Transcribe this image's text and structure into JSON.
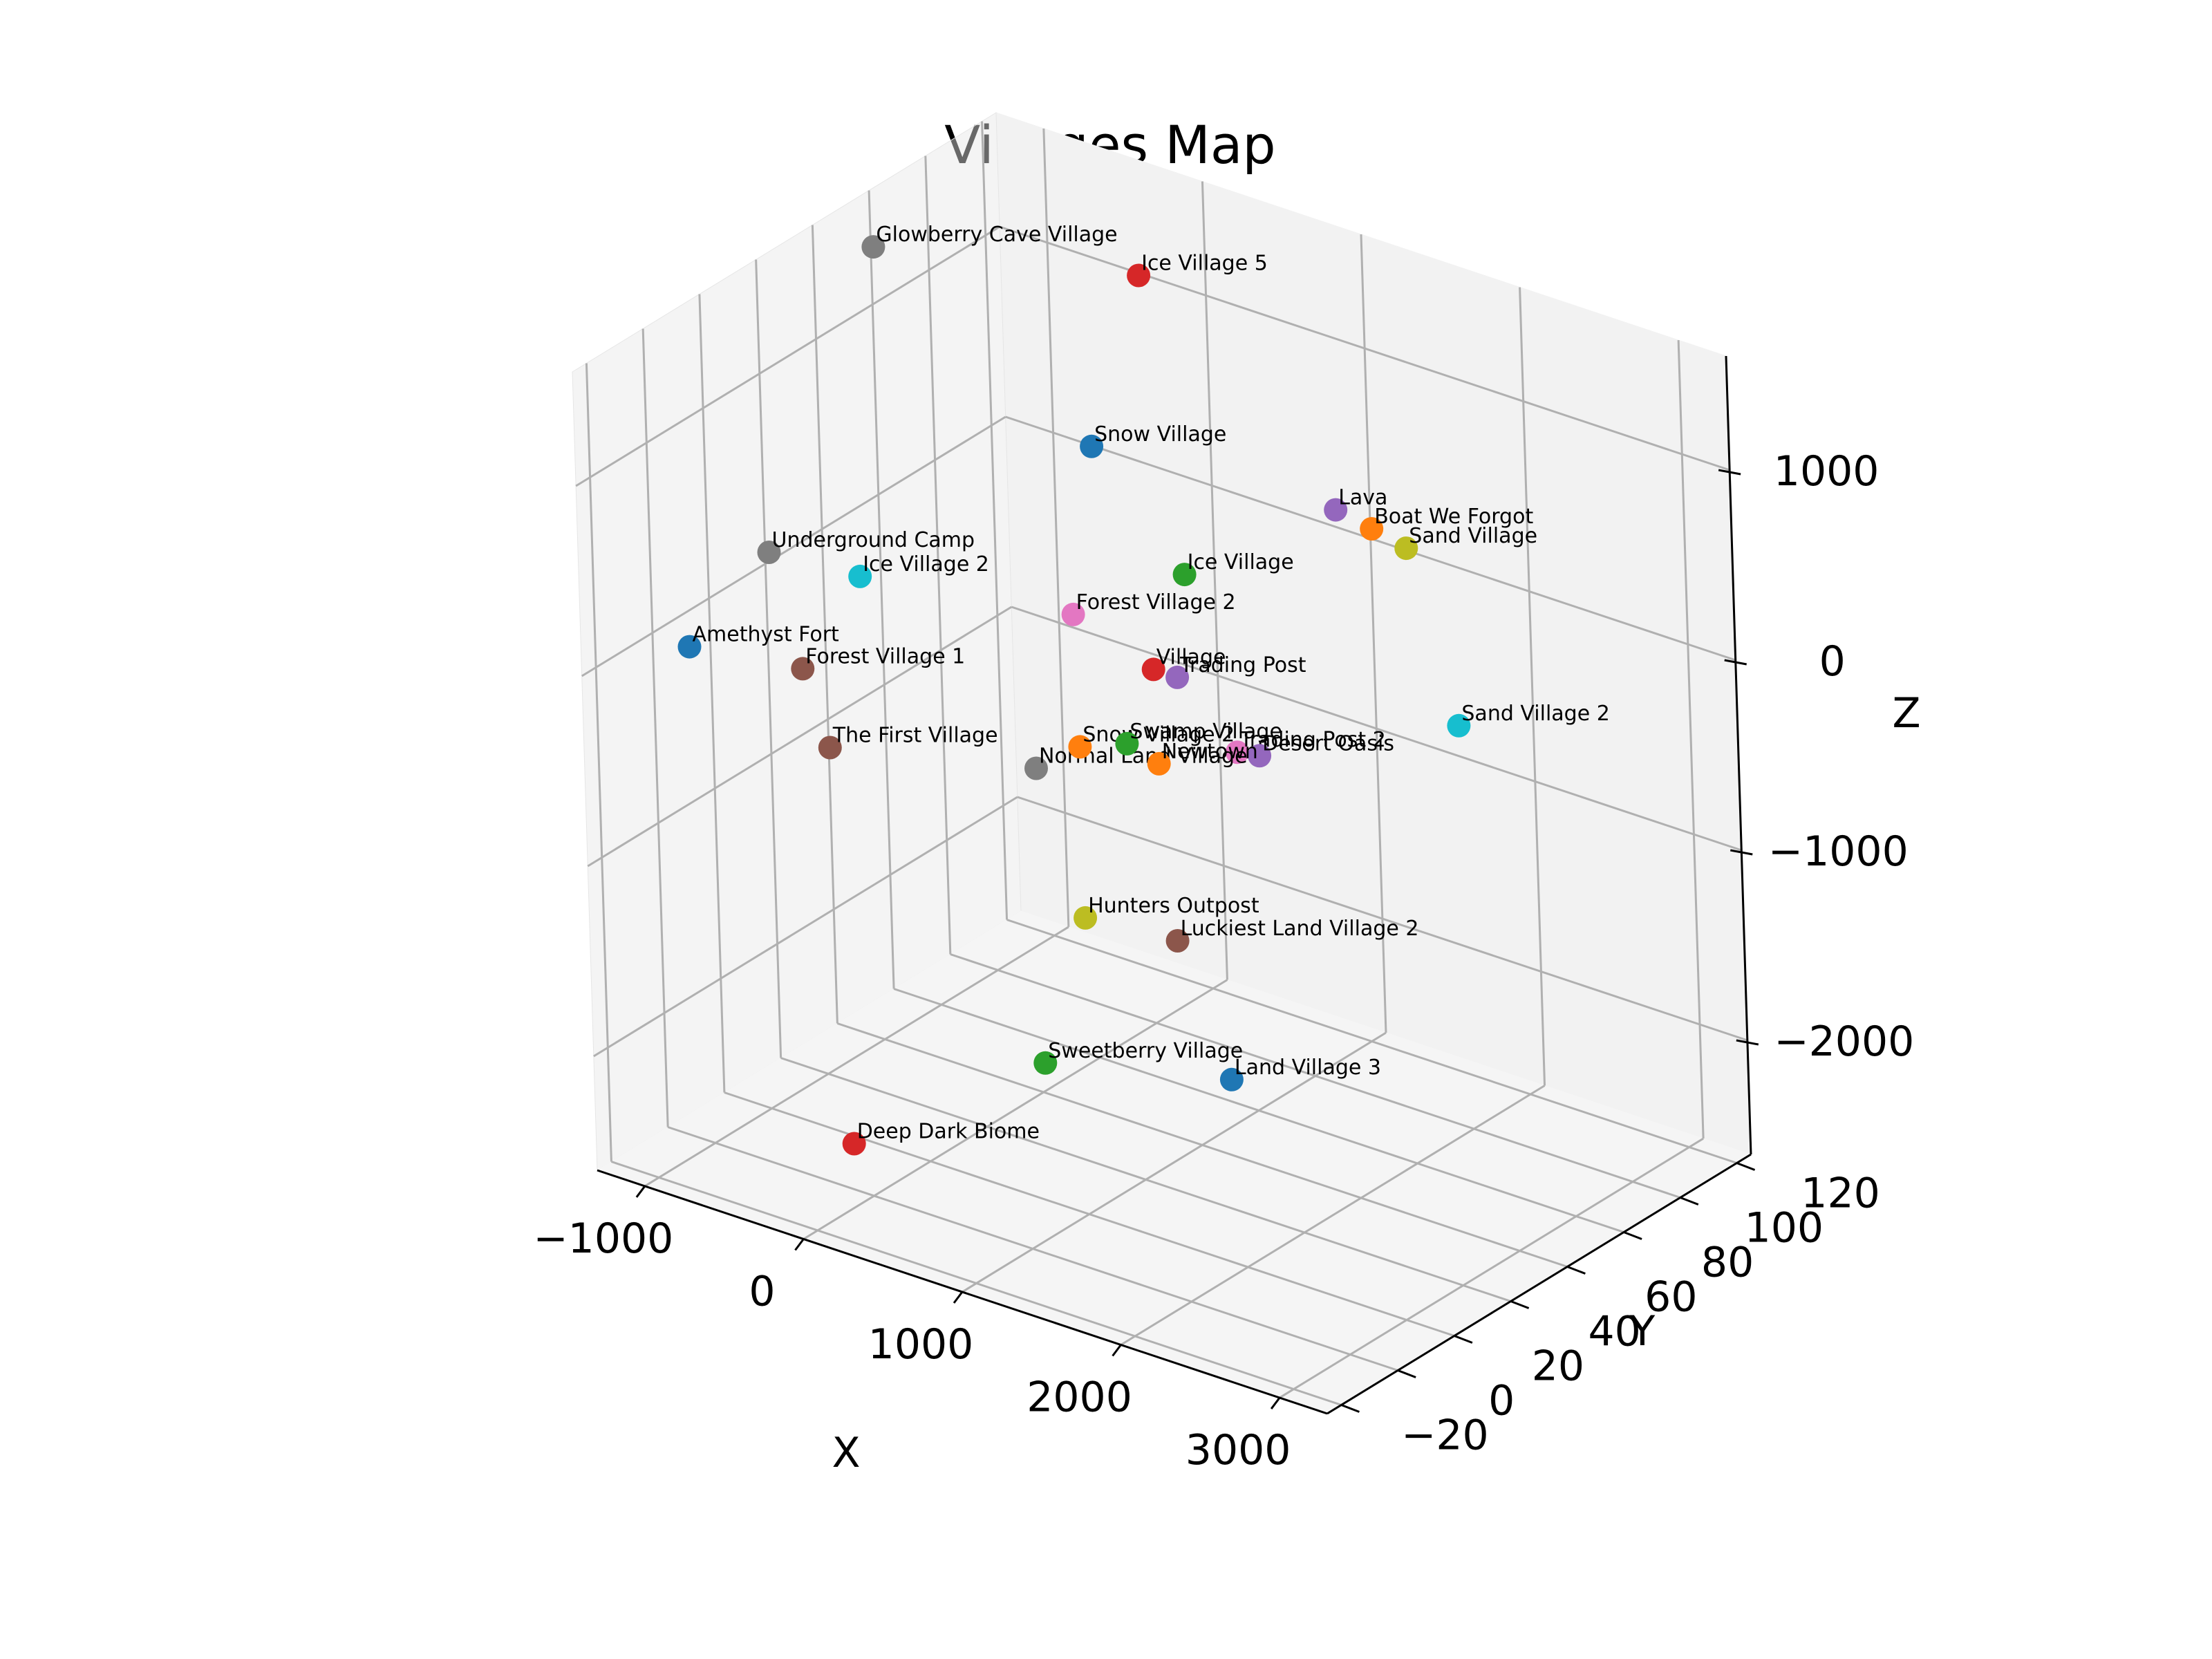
{
  "chart_data": {
    "type": "scatter",
    "projection": "3d",
    "title": "Villages Map",
    "xlabel": "X",
    "ylabel": "Y",
    "zlabel": "Z",
    "grid": true,
    "xlim": [
      -1300,
      3300
    ],
    "ylim": [
      -25,
      125
    ],
    "zlim": [
      -2600,
      1600
    ],
    "xticks": [
      -1000,
      0,
      1000,
      2000,
      3000
    ],
    "xtick_labels": [
      "−1000",
      "0",
      "1000",
      "2000",
      "3000"
    ],
    "yticks": [
      -20,
      0,
      20,
      40,
      60,
      80,
      100,
      120
    ],
    "ytick_labels": [
      "−20",
      "0",
      "20",
      "40",
      "60",
      "80",
      "100",
      "120"
    ],
    "zticks": [
      -2000,
      -1000,
      0,
      1000
    ],
    "ztick_labels": [
      "−2000",
      "−1000",
      "0",
      "1000"
    ],
    "points": [
      {
        "name": "Glowberry Cave Village",
        "x": -1100,
        "y": 70,
        "z": 1450,
        "color": "#7f7f7f"
      },
      {
        "name": "Ice Village 5",
        "x": -150,
        "y": 110,
        "z": 1200,
        "color": "#d62728"
      },
      {
        "name": "Lava",
        "x": 1700,
        "y": 75,
        "z": 800,
        "color": "#9467bd"
      },
      {
        "name": "Sand Village",
        "x": 2050,
        "y": 80,
        "z": 650,
        "color": "#bcbd22"
      },
      {
        "name": "Boat We Forgot",
        "x": 1650,
        "y": 90,
        "z": 550,
        "color": "#ff7f0e"
      },
      {
        "name": "Underground Camp",
        "x": -1000,
        "y": 25,
        "z": 280,
        "color": "#7f7f7f"
      },
      {
        "name": "Snow Village",
        "x": -300,
        "y": 100,
        "z": 350,
        "color": "#1f77b4"
      },
      {
        "name": "Ice Village 2",
        "x": -700,
        "y": 40,
        "z": 100,
        "color": "#17becf"
      },
      {
        "name": "Amethyst Fort",
        "x": -1250,
        "y": 10,
        "z": -150,
        "color": "#1f77b4"
      },
      {
        "name": "Forest Village 1",
        "x": -900,
        "y": 30,
        "z": -350,
        "color": "#8c564b"
      },
      {
        "name": "Forest Village 2",
        "x": 100,
        "y": 70,
        "z": -150,
        "color": "#e377c2"
      },
      {
        "name": "Ice Village",
        "x": -100,
        "y": 120,
        "z": -450,
        "color": "#2ca02c"
      },
      {
        "name": "Village",
        "x": 600,
        "y": 70,
        "z": -300,
        "color": "#d62728"
      },
      {
        "name": "Trading Post",
        "x": 750,
        "y": 70,
        "z": -300,
        "color": "#9467bd"
      },
      {
        "name": "Trading Post 2",
        "x": 1300,
        "y": 60,
        "z": -450,
        "color": "#e377c2"
      },
      {
        "name": "Desert Oasis",
        "x": 1350,
        "y": 65,
        "z": -500,
        "color": "#9467bd"
      },
      {
        "name": "Sand Village 2",
        "x": 2350,
        "y": 80,
        "z": -200,
        "color": "#17becf"
      },
      {
        "name": "The First Village",
        "x": -650,
        "y": 25,
        "z": -650,
        "color": "#8c564b"
      },
      {
        "name": "Normal Land Village",
        "x": 200,
        "y": 50,
        "z": -750,
        "color": "#7f7f7f"
      },
      {
        "name": "Snow Village 2",
        "x": 300,
        "y": 60,
        "z": -700,
        "color": "#ff7f0e"
      },
      {
        "name": "Swamp Village",
        "x": 600,
        "y": 60,
        "z": -600,
        "color": "#2ca02c"
      },
      {
        "name": "Newtown",
        "x": 800,
        "y": 60,
        "z": -650,
        "color": "#ff7f0e"
      },
      {
        "name": "Hunters Outpost",
        "x": 300,
        "y": 60,
        "z": -1600,
        "color": "#bcbd22"
      },
      {
        "name": "Luckiest Land Village 2",
        "x": 700,
        "y": 70,
        "z": -1700,
        "color": "#8c564b"
      },
      {
        "name": "Land Village 3",
        "x": 1200,
        "y": 60,
        "z": -2200,
        "color": "#1f77b4"
      },
      {
        "name": "Sweetberry Village",
        "x": 200,
        "y": 50,
        "z": -2300,
        "color": "#2ca02c"
      },
      {
        "name": "Deep Dark Biome",
        "x": -300,
        "y": 10,
        "z": -2500,
        "color": "#d62728"
      }
    ]
  }
}
